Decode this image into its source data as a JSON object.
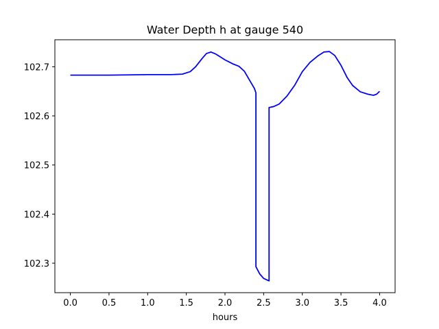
{
  "chart_data": {
    "type": "line",
    "title": "Water Depth h at gauge 540",
    "xlabel": "hours",
    "ylabel": "",
    "xlim": [
      -0.2,
      4.2
    ],
    "ylim": [
      102.24,
      102.755
    ],
    "xticks": [
      0.0,
      0.5,
      1.0,
      1.5,
      2.0,
      2.5,
      3.0,
      3.5,
      4.0
    ],
    "xtick_labels": [
      "0.0",
      "0.5",
      "1.0",
      "1.5",
      "2.0",
      "2.5",
      "3.0",
      "3.5",
      "4.0"
    ],
    "yticks": [
      102.3,
      102.4,
      102.5,
      102.6,
      102.7
    ],
    "ytick_labels": [
      "102.3",
      "102.4",
      "102.5",
      "102.6",
      "102.7"
    ],
    "grid": false,
    "line_color": "#0000ff",
    "series": [
      {
        "x": [
          0.0,
          0.5,
          1.0,
          1.3,
          1.45,
          1.55,
          1.62,
          1.7,
          1.76,
          1.82,
          1.88,
          1.95,
          2.0,
          2.05,
          2.1,
          2.18,
          2.25,
          2.32,
          2.38,
          2.4,
          2.4,
          2.45,
          2.5,
          2.57,
          2.57,
          2.63,
          2.7,
          2.75,
          2.8,
          2.9,
          3.0,
          3.1,
          3.2,
          3.28,
          3.35,
          3.42,
          3.5,
          3.58,
          3.65,
          3.75,
          3.85,
          3.92,
          3.96,
          4.0
        ],
        "y": [
          102.683,
          102.683,
          102.684,
          102.684,
          102.685,
          102.69,
          102.7,
          102.716,
          102.727,
          102.73,
          102.726,
          102.719,
          102.714,
          102.71,
          102.706,
          102.701,
          102.691,
          102.672,
          102.656,
          102.647,
          102.293,
          102.278,
          102.269,
          102.264,
          102.617,
          102.619,
          102.624,
          102.632,
          102.64,
          102.662,
          102.69,
          102.709,
          102.722,
          102.73,
          102.731,
          102.723,
          102.703,
          102.678,
          102.662,
          102.649,
          102.644,
          102.642,
          102.644,
          102.65
        ]
      }
    ]
  }
}
